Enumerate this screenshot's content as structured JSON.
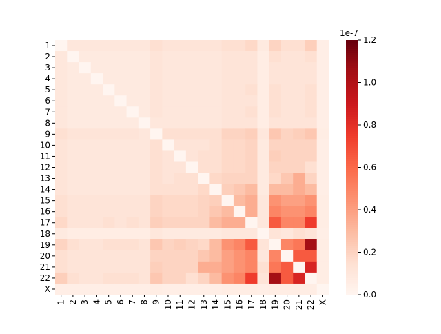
{
  "chart_data": {
    "type": "heatmap",
    "categories": [
      "1",
      "2",
      "3",
      "4",
      "5",
      "6",
      "7",
      "8",
      "9",
      "10",
      "11",
      "12",
      "13",
      "14",
      "15",
      "16",
      "17",
      "18",
      "19",
      "20",
      "21",
      "22",
      "X"
    ],
    "values": [
      [
        0,
        0.1,
        0.1,
        0.1,
        0.1,
        0.1,
        0.1,
        0.1,
        0.15,
        0.12,
        0.12,
        0.12,
        0.12,
        0.12,
        0.15,
        0.15,
        0.18,
        0.08,
        0.2,
        0.15,
        0.15,
        0.22,
        0.05
      ],
      [
        0.1,
        0,
        0.08,
        0.08,
        0.08,
        0.08,
        0.08,
        0.08,
        0.12,
        0.1,
        0.1,
        0.1,
        0.1,
        0.1,
        0.12,
        0.12,
        0.12,
        0.06,
        0.15,
        0.12,
        0.12,
        0.15,
        0.05
      ],
      [
        0.1,
        0.08,
        0,
        0.08,
        0.08,
        0.08,
        0.08,
        0.08,
        0.12,
        0.1,
        0.1,
        0.1,
        0.1,
        0.1,
        0.12,
        0.12,
        0.12,
        0.06,
        0.12,
        0.12,
        0.12,
        0.12,
        0.05
      ],
      [
        0.1,
        0.08,
        0.08,
        0,
        0.08,
        0.08,
        0.08,
        0.08,
        0.12,
        0.1,
        0.1,
        0.1,
        0.1,
        0.1,
        0.12,
        0.12,
        0.12,
        0.06,
        0.12,
        0.12,
        0.12,
        0.12,
        0.05
      ],
      [
        0.1,
        0.08,
        0.08,
        0.08,
        0,
        0.08,
        0.08,
        0.08,
        0.12,
        0.1,
        0.1,
        0.1,
        0.1,
        0.1,
        0.12,
        0.12,
        0.15,
        0.06,
        0.15,
        0.12,
        0.12,
        0.15,
        0.05
      ],
      [
        0.1,
        0.08,
        0.08,
        0.08,
        0.08,
        0,
        0.08,
        0.08,
        0.12,
        0.1,
        0.1,
        0.1,
        0.1,
        0.1,
        0.12,
        0.12,
        0.12,
        0.06,
        0.15,
        0.12,
        0.12,
        0.15,
        0.05
      ],
      [
        0.1,
        0.08,
        0.08,
        0.08,
        0.08,
        0.08,
        0,
        0.08,
        0.12,
        0.1,
        0.1,
        0.1,
        0.1,
        0.1,
        0.12,
        0.12,
        0.15,
        0.06,
        0.15,
        0.12,
        0.12,
        0.15,
        0.05
      ],
      [
        0.1,
        0.08,
        0.08,
        0.08,
        0.08,
        0.08,
        0.08,
        0,
        0.1,
        0.1,
        0.1,
        0.1,
        0.1,
        0.1,
        0.12,
        0.12,
        0.12,
        0.06,
        0.12,
        0.12,
        0.12,
        0.12,
        0.05
      ],
      [
        0.15,
        0.12,
        0.12,
        0.12,
        0.12,
        0.12,
        0.12,
        0.1,
        0,
        0.15,
        0.15,
        0.15,
        0.15,
        0.15,
        0.2,
        0.2,
        0.22,
        0.1,
        0.25,
        0.2,
        0.22,
        0.25,
        0.06
      ],
      [
        0.12,
        0.1,
        0.1,
        0.1,
        0.1,
        0.1,
        0.1,
        0.1,
        0.15,
        0,
        0.12,
        0.12,
        0.12,
        0.15,
        0.18,
        0.18,
        0.2,
        0.08,
        0.2,
        0.2,
        0.2,
        0.2,
        0.05
      ],
      [
        0.12,
        0.1,
        0.1,
        0.1,
        0.1,
        0.1,
        0.1,
        0.1,
        0.15,
        0.12,
        0,
        0.12,
        0.15,
        0.15,
        0.18,
        0.18,
        0.2,
        0.08,
        0.22,
        0.2,
        0.2,
        0.2,
        0.05
      ],
      [
        0.12,
        0.1,
        0.1,
        0.1,
        0.1,
        0.1,
        0.1,
        0.1,
        0.15,
        0.12,
        0.12,
        0,
        0.15,
        0.15,
        0.18,
        0.18,
        0.2,
        0.08,
        0.2,
        0.2,
        0.2,
        0.15,
        0.05
      ],
      [
        0.12,
        0.1,
        0.1,
        0.1,
        0.1,
        0.1,
        0.1,
        0.1,
        0.15,
        0.12,
        0.15,
        0.15,
        0,
        0.18,
        0.2,
        0.2,
        0.2,
        0.08,
        0.18,
        0.25,
        0.35,
        0.2,
        0.05
      ],
      [
        0.12,
        0.1,
        0.1,
        0.1,
        0.1,
        0.1,
        0.1,
        0.1,
        0.15,
        0.15,
        0.15,
        0.15,
        0.18,
        0,
        0.22,
        0.25,
        0.3,
        0.08,
        0.3,
        0.3,
        0.35,
        0.3,
        0.05
      ],
      [
        0.15,
        0.12,
        0.12,
        0.12,
        0.12,
        0.12,
        0.12,
        0.12,
        0.2,
        0.18,
        0.18,
        0.18,
        0.2,
        0.22,
        0,
        0.3,
        0.35,
        0.1,
        0.45,
        0.4,
        0.4,
        0.45,
        0.06
      ],
      [
        0.15,
        0.12,
        0.12,
        0.12,
        0.12,
        0.12,
        0.12,
        0.12,
        0.2,
        0.18,
        0.18,
        0.18,
        0.2,
        0.25,
        0.3,
        0,
        0.35,
        0.1,
        0.5,
        0.45,
        0.45,
        0.5,
        0.06
      ],
      [
        0.18,
        0.12,
        0.12,
        0.12,
        0.15,
        0.12,
        0.15,
        0.12,
        0.22,
        0.2,
        0.2,
        0.2,
        0.2,
        0.3,
        0.35,
        0.35,
        0,
        0.1,
        0.65,
        0.5,
        0.5,
        0.75,
        0.06
      ],
      [
        0.08,
        0.06,
        0.06,
        0.06,
        0.06,
        0.06,
        0.06,
        0.06,
        0.1,
        0.08,
        0.08,
        0.08,
        0.08,
        0.08,
        0.1,
        0.1,
        0.1,
        0,
        0.12,
        0.1,
        0.15,
        0.12,
        0.05
      ],
      [
        0.2,
        0.15,
        0.12,
        0.12,
        0.15,
        0.15,
        0.15,
        0.12,
        0.25,
        0.2,
        0.22,
        0.2,
        0.18,
        0.3,
        0.45,
        0.5,
        0.65,
        0.12,
        0,
        0.5,
        0.55,
        1.05,
        0.06
      ],
      [
        0.15,
        0.12,
        0.12,
        0.12,
        0.12,
        0.12,
        0.12,
        0.12,
        0.2,
        0.2,
        0.2,
        0.2,
        0.25,
        0.3,
        0.4,
        0.45,
        0.5,
        0.1,
        0.5,
        0,
        0.65,
        0.65,
        0.06
      ],
      [
        0.15,
        0.12,
        0.12,
        0.12,
        0.12,
        0.12,
        0.12,
        0.12,
        0.22,
        0.2,
        0.2,
        0.2,
        0.35,
        0.35,
        0.4,
        0.45,
        0.5,
        0.15,
        0.55,
        0.65,
        0,
        0.85,
        0.06
      ],
      [
        0.22,
        0.15,
        0.12,
        0.12,
        0.15,
        0.15,
        0.15,
        0.12,
        0.25,
        0.2,
        0.2,
        0.15,
        0.2,
        0.3,
        0.45,
        0.5,
        0.75,
        0.12,
        1.05,
        0.65,
        0.85,
        0,
        0.06
      ],
      [
        0.05,
        0.05,
        0.05,
        0.05,
        0.05,
        0.05,
        0.05,
        0.05,
        0.06,
        0.05,
        0.05,
        0.05,
        0.05,
        0.05,
        0.06,
        0.06,
        0.06,
        0.05,
        0.06,
        0.06,
        0.06,
        0.06,
        0
      ]
    ],
    "colormap": "Reds",
    "zlim": [
      0,
      1.2
    ],
    "zticks": [
      {
        "value": 0,
        "label": "0.0"
      },
      0.2,
      0.4,
      0.6,
      0.8,
      {
        "value": 1,
        "label": "1.0"
      },
      1.2
    ],
    "offset_label": "1e-7"
  }
}
